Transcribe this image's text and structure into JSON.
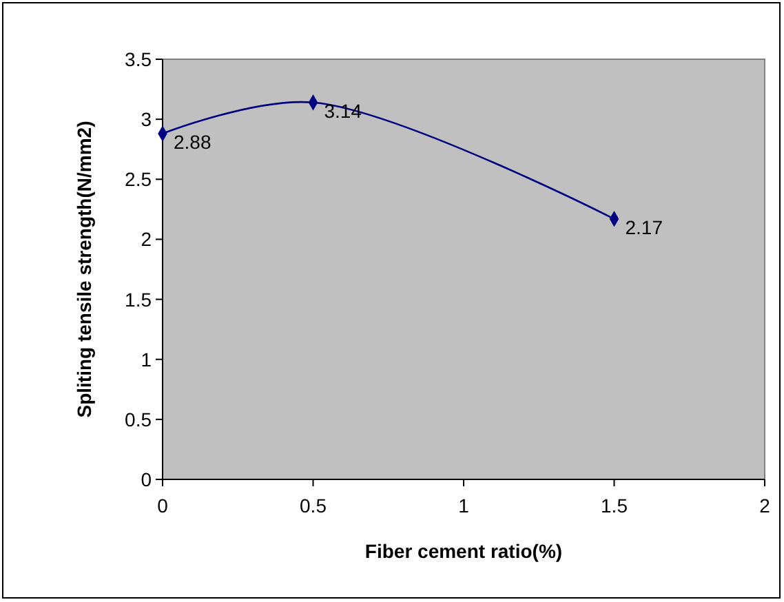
{
  "chart_data": {
    "type": "line",
    "xlabel": "Fiber cement ratio(%)",
    "ylabel": "Spliting tensile strength(N/mm2)",
    "x": [
      0,
      0.5,
      1.5
    ],
    "series": [
      {
        "color": "#000080",
        "values": [
          2.88,
          3.14,
          2.17
        ]
      }
    ],
    "xlim": [
      0,
      2
    ],
    "xticks": [
      0,
      0.5,
      1,
      1.5,
      2
    ],
    "ylim": [
      0,
      3.5
    ],
    "yticks": [
      0,
      0.5,
      1,
      1.5,
      2,
      2.5,
      3,
      3.5
    ],
    "grid": false,
    "marker": "diamond",
    "line_style": "solid",
    "data_labels": true
  }
}
